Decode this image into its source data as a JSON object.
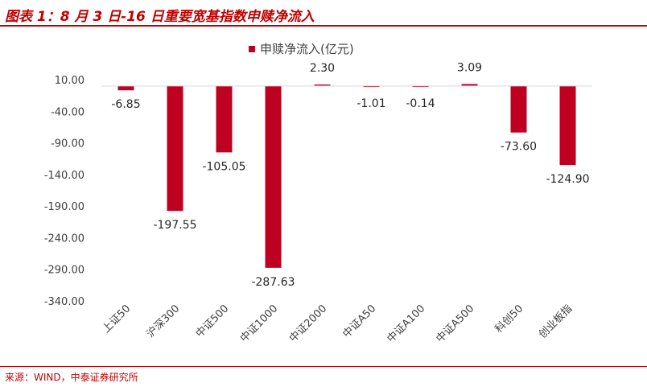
{
  "header": {
    "title": "图表 1：8 月 3 日-16 日重要宽基指数申赎净流入"
  },
  "footer": {
    "source": "来源：WIND，中泰证券研究所"
  },
  "colors": {
    "accent": "#c00000",
    "bar": "#c00020"
  },
  "chart_data": {
    "type": "bar",
    "categories": [
      "上证50",
      "沪深300",
      "中证500",
      "中证1000",
      "中证2000",
      "中证A50",
      "中证A100",
      "中证A500",
      "科创50",
      "创业板指"
    ],
    "series": [
      {
        "name": "申赎净流入(亿元)",
        "values": [
          -6.85,
          -197.55,
          -105.05,
          -287.63,
          2.3,
          -1.01,
          -0.14,
          3.09,
          -73.6,
          -124.9
        ]
      }
    ],
    "data_labels": [
      "-6.85",
      "-197.55",
      "-105.05",
      "-287.63",
      "2.30",
      "-1.01",
      "-0.14",
      "3.09",
      "-73.60",
      "-124.90"
    ],
    "y_ticks": [
      "10.00",
      "-40.00",
      "-90.00",
      "-140.00",
      "-190.00",
      "-240.00",
      "-290.00",
      "-340.00"
    ],
    "ylim": [
      -340,
      10
    ],
    "legend": "top-center",
    "grid": false
  }
}
